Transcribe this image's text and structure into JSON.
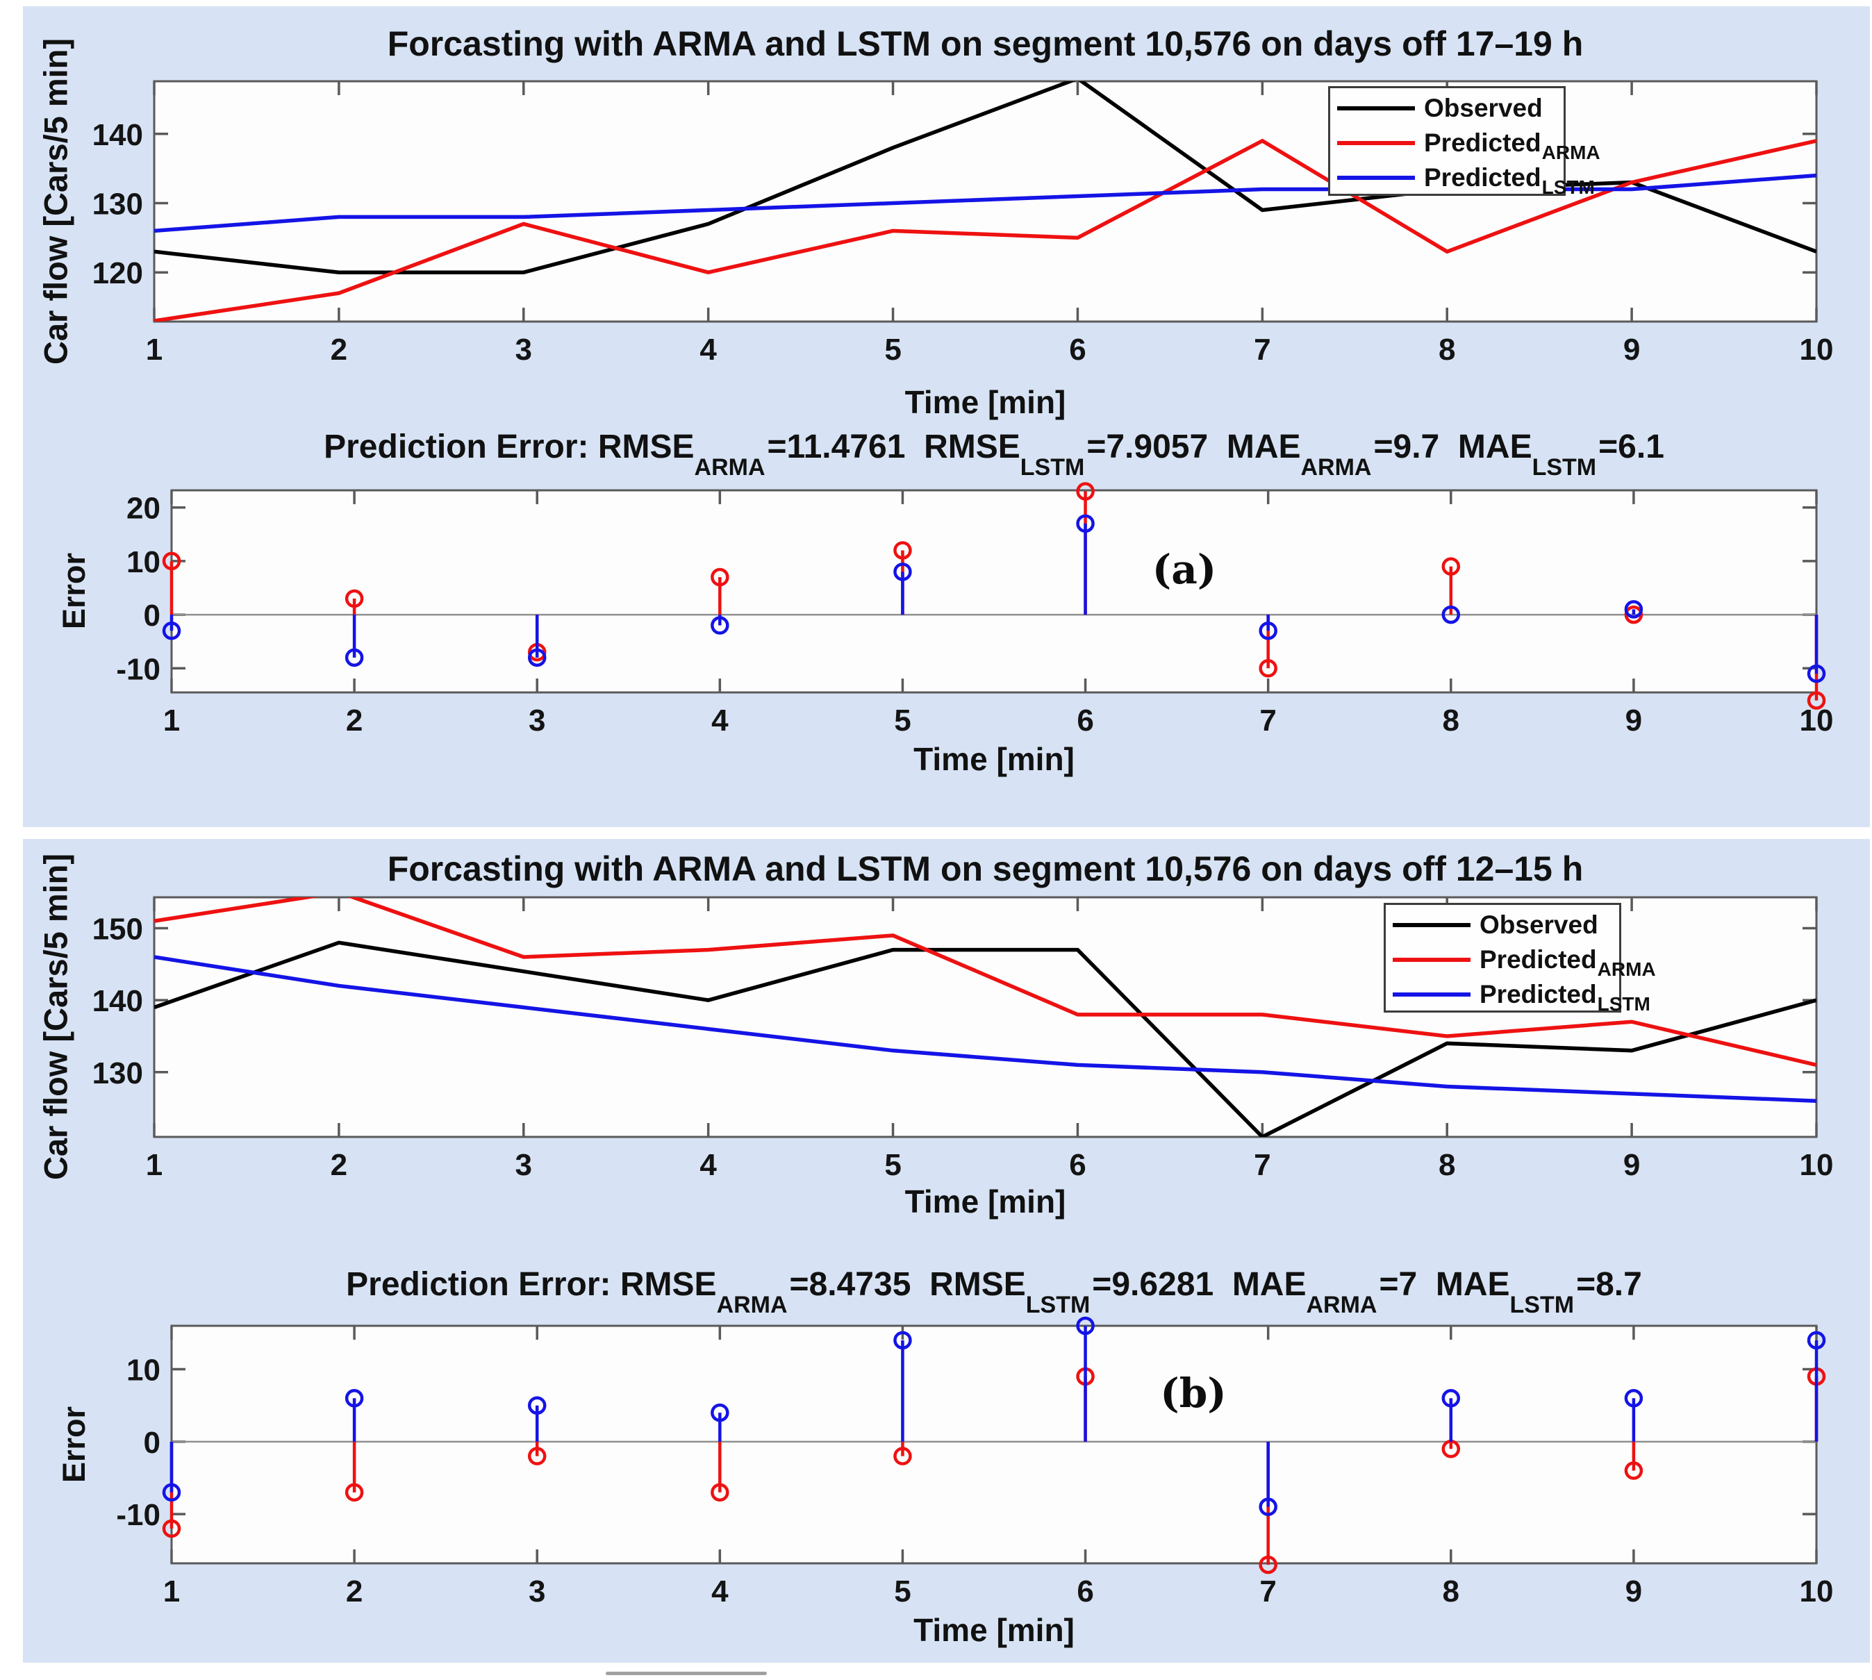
{
  "page": {
    "background_color": "#ffffff",
    "panel_color": "#d7e3f4",
    "plot_background": "#fdfdfd",
    "axis_color": "#5a5a5a",
    "zero_line_color": "#8f8f8f",
    "observed_color": "#000000",
    "arma_color": "#ee1111",
    "lstm_color": "#1414e6"
  },
  "chart_data": [
    {
      "id": "forecast-a",
      "type": "line",
      "title": "Forcasting with ARMA and LSTM on segment 10,576 on days off 17–19 h",
      "xlabel": "Time [min]",
      "ylabel": "Car flow [Cars/5 min]",
      "x": [
        1,
        2,
        3,
        4,
        5,
        6,
        7,
        8,
        9,
        10
      ],
      "xlim": [
        1,
        10
      ],
      "xticks": [
        1,
        2,
        3,
        4,
        5,
        6,
        7,
        8,
        9,
        10
      ],
      "yticks": [
        140,
        130,
        120
      ],
      "ylim": [
        112.9,
        147.6
      ],
      "grid": false,
      "legend_position": "top-right",
      "series": [
        {
          "name": "Observed",
          "sub": "",
          "color": "#000000",
          "values": [
            123,
            120,
            120,
            127,
            138,
            148,
            129,
            132,
            133,
            123
          ]
        },
        {
          "name": "Predicted",
          "sub": "ARMA",
          "color": "#ee1111",
          "values": [
            113,
            117,
            127,
            120,
            126,
            125,
            139,
            123,
            133,
            139
          ]
        },
        {
          "name": "Predicted",
          "sub": "LSTM",
          "color": "#1414e6",
          "values": [
            126,
            128,
            128,
            129,
            130,
            131,
            132,
            132,
            132,
            134
          ]
        }
      ]
    },
    {
      "id": "error-a",
      "type": "stem",
      "title_parts": [
        {
          "text": "Prediction Error: RMSE",
          "sub": "ARMA"
        },
        {
          "text": "=11.4761  RMSE",
          "sub": "LSTM"
        },
        {
          "text": "=7.9057  MAE",
          "sub": "ARMA"
        },
        {
          "text": "=9.7  MAE",
          "sub": "LSTM"
        },
        {
          "text": "=6.1",
          "sub": ""
        }
      ],
      "annotation": "(a)",
      "xlabel": "Time [min]",
      "ylabel": "Error",
      "x": [
        1,
        2,
        3,
        4,
        5,
        6,
        7,
        8,
        9,
        10
      ],
      "xlim": [
        1,
        10
      ],
      "xticks": [
        1,
        2,
        3,
        4,
        5,
        6,
        7,
        8,
        9,
        10
      ],
      "yticks": [
        20,
        10,
        0,
        -10
      ],
      "ylim": [
        -14.5,
        23.2
      ],
      "grid": false,
      "series": [
        {
          "name": "ARMA error",
          "sub": "ARMA",
          "color": "#ee1111",
          "values": [
            10,
            3,
            -7,
            7,
            12,
            23,
            -10,
            9,
            0,
            -16
          ]
        },
        {
          "name": "LSTM error",
          "sub": "LSTM",
          "color": "#1414e6",
          "values": [
            -3,
            -8,
            -8,
            -2,
            8,
            17,
            -3,
            0,
            1,
            -11
          ]
        }
      ]
    },
    {
      "id": "forecast-b",
      "type": "line",
      "title": "Forcasting with ARMA and LSTM on segment 10,576 on days off 12–15 h",
      "xlabel": "Time [min]",
      "ylabel": "Car flow [Cars/5 min]",
      "x": [
        1,
        2,
        3,
        4,
        5,
        6,
        7,
        8,
        9,
        10
      ],
      "xlim": [
        1,
        10
      ],
      "xticks": [
        1,
        2,
        3,
        4,
        5,
        6,
        7,
        8,
        9,
        10
      ],
      "yticks": [
        150,
        140,
        130
      ],
      "ylim": [
        121,
        154.3
      ],
      "grid": false,
      "legend_position": "top-right",
      "series": [
        {
          "name": "Observed",
          "sub": "",
          "color": "#000000",
          "values": [
            139,
            148,
            144,
            140,
            147,
            147,
            121,
            134,
            133,
            140
          ]
        },
        {
          "name": "Predicted",
          "sub": "ARMA",
          "color": "#ee1111",
          "values": [
            151,
            155,
            146,
            147,
            149,
            138,
            138,
            135,
            137,
            131
          ]
        },
        {
          "name": "Predicted",
          "sub": "LSTM",
          "color": "#1414e6",
          "values": [
            146,
            142,
            139,
            136,
            133,
            131,
            130,
            128,
            127,
            126
          ]
        }
      ]
    },
    {
      "id": "error-b",
      "type": "stem",
      "title_parts": [
        {
          "text": "Prediction Error: RMSE",
          "sub": "ARMA"
        },
        {
          "text": "=8.4735  RMSE",
          "sub": "LSTM"
        },
        {
          "text": "=9.6281  MAE",
          "sub": "ARMA"
        },
        {
          "text": "=7  MAE",
          "sub": "LSTM"
        },
        {
          "text": "=8.7",
          "sub": ""
        }
      ],
      "annotation": "(b)",
      "xlabel": "Time [min]",
      "ylabel": "Error",
      "x": [
        1,
        2,
        3,
        4,
        5,
        6,
        7,
        8,
        9,
        10
      ],
      "xlim": [
        1,
        10
      ],
      "xticks": [
        1,
        2,
        3,
        4,
        5,
        6,
        7,
        8,
        9,
        10
      ],
      "yticks": [
        10,
        0,
        -10
      ],
      "ylim": [
        -16.8,
        16.0
      ],
      "grid": false,
      "series": [
        {
          "name": "ARMA error",
          "sub": "ARMA",
          "color": "#ee1111",
          "values": [
            -12,
            -7,
            -2,
            -7,
            -2,
            9,
            -17,
            -1,
            -4,
            9
          ]
        },
        {
          "name": "LSTM error",
          "sub": "LSTM",
          "color": "#1414e6",
          "values": [
            -7,
            6,
            5,
            4,
            14,
            16,
            -9,
            6,
            6,
            14
          ]
        }
      ]
    }
  ],
  "legend": {
    "entries": [
      {
        "label": "Observed",
        "sub": ""
      },
      {
        "label": "Predicted",
        "sub": "ARMA"
      },
      {
        "label": "Predicted",
        "sub": "LSTM"
      }
    ]
  }
}
